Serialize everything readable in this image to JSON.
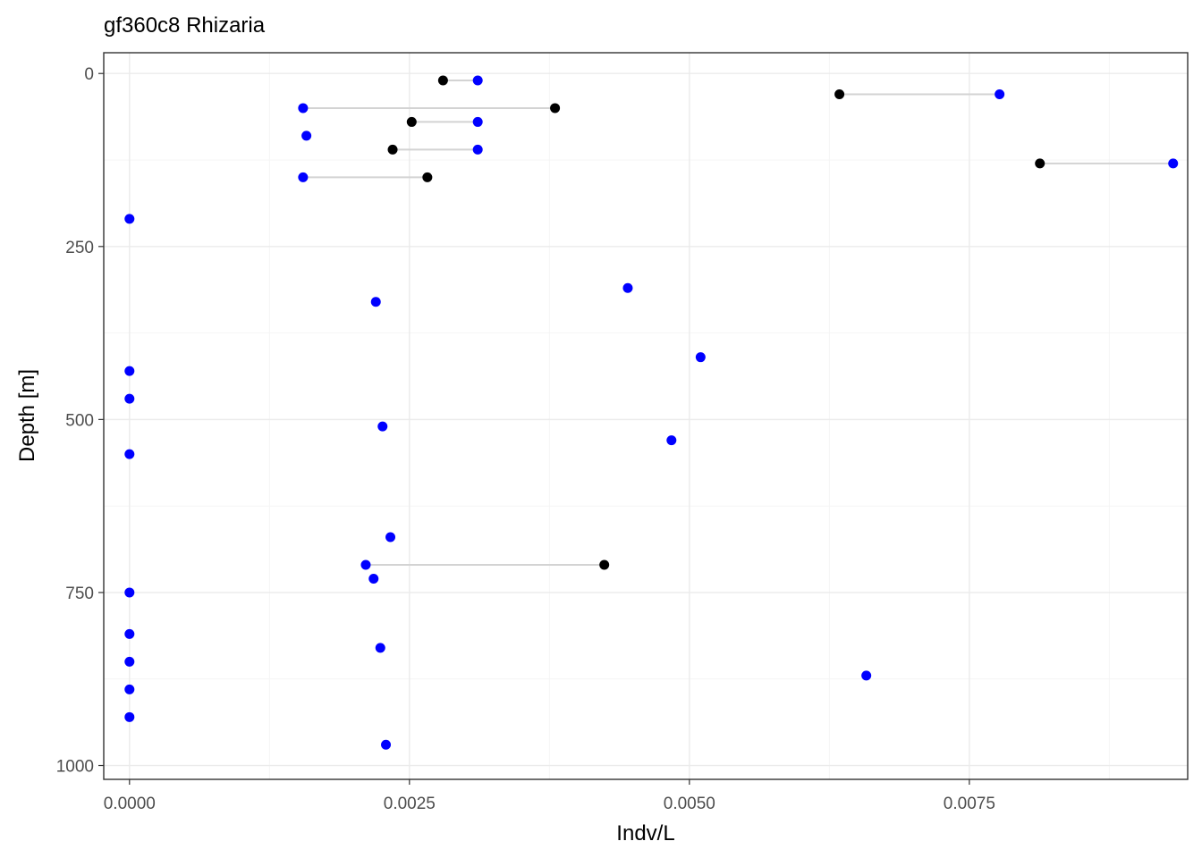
{
  "chart_data": {
    "type": "scatter",
    "title": "gf360c8 Rhizaria",
    "xlabel": "Indv/L",
    "ylabel": "Depth [m]",
    "xlim": [
      -0.00023,
      0.00945
    ],
    "ylim": [
      1020,
      -30
    ],
    "y_reversed": true,
    "grid": true,
    "x_ticks": [
      0.0,
      0.0025,
      0.005,
      0.0075
    ],
    "x_tick_labels": [
      "0.0000",
      "0.0025",
      "0.0050",
      "0.0075"
    ],
    "y_ticks": [
      0,
      250,
      500,
      750,
      1000
    ],
    "y_tick_labels": [
      "0",
      "250",
      "500",
      "750",
      "1000"
    ],
    "colors": {
      "blue_series": "#0000ff",
      "black_series": "#000000",
      "segments": "#d3d3d3"
    },
    "series": [
      {
        "color": "blue",
        "points": [
          {
            "x": 0.00311,
            "y": 10
          },
          {
            "x": 0.00777,
            "y": 30
          },
          {
            "x": 0.00155,
            "y": 50
          },
          {
            "x": 0.00311,
            "y": 70
          },
          {
            "x": 0.00158,
            "y": 90
          },
          {
            "x": 0.00311,
            "y": 110
          },
          {
            "x": 0.00932,
            "y": 130
          },
          {
            "x": 0.00155,
            "y": 150
          },
          {
            "x": 0.0,
            "y": 210
          },
          {
            "x": 0.00445,
            "y": 310
          },
          {
            "x": 0.0022,
            "y": 330
          },
          {
            "x": 0.0051,
            "y": 410
          },
          {
            "x": 0.0,
            "y": 430
          },
          {
            "x": 0.0,
            "y": 470
          },
          {
            "x": 0.00226,
            "y": 510
          },
          {
            "x": 0.00484,
            "y": 530
          },
          {
            "x": 0.0,
            "y": 550
          },
          {
            "x": 0.00233,
            "y": 670
          },
          {
            "x": 0.00211,
            "y": 710
          },
          {
            "x": 0.00218,
            "y": 730
          },
          {
            "x": 0.0,
            "y": 750
          },
          {
            "x": 0.0,
            "y": 810
          },
          {
            "x": 0.00224,
            "y": 830
          },
          {
            "x": 0.0,
            "y": 850
          },
          {
            "x": 0.00658,
            "y": 870
          },
          {
            "x": 0.0,
            "y": 890
          },
          {
            "x": 0.0,
            "y": 930
          },
          {
            "x": 0.00229,
            "y": 970
          }
        ]
      },
      {
        "color": "black",
        "points": [
          {
            "x": 0.0028,
            "y": 10
          },
          {
            "x": 0.00634,
            "y": 30
          },
          {
            "x": 0.0038,
            "y": 50
          },
          {
            "x": 0.00252,
            "y": 70
          },
          {
            "x": 0.00235,
            "y": 110
          },
          {
            "x": 0.00813,
            "y": 130
          },
          {
            "x": 0.00266,
            "y": 150
          },
          {
            "x": 0.00424,
            "y": 710
          }
        ]
      }
    ],
    "segments": [
      {
        "y": 10,
        "x1": 0.0028,
        "x2": 0.00311
      },
      {
        "y": 30,
        "x1": 0.00634,
        "x2": 0.00777
      },
      {
        "y": 50,
        "x1": 0.00155,
        "x2": 0.0038
      },
      {
        "y": 70,
        "x1": 0.00252,
        "x2": 0.00311
      },
      {
        "y": 110,
        "x1": 0.00235,
        "x2": 0.00311
      },
      {
        "y": 130,
        "x1": 0.00813,
        "x2": 0.00932
      },
      {
        "y": 150,
        "x1": 0.00155,
        "x2": 0.00266
      },
      {
        "y": 710,
        "x1": 0.00211,
        "x2": 0.00424
      }
    ]
  }
}
